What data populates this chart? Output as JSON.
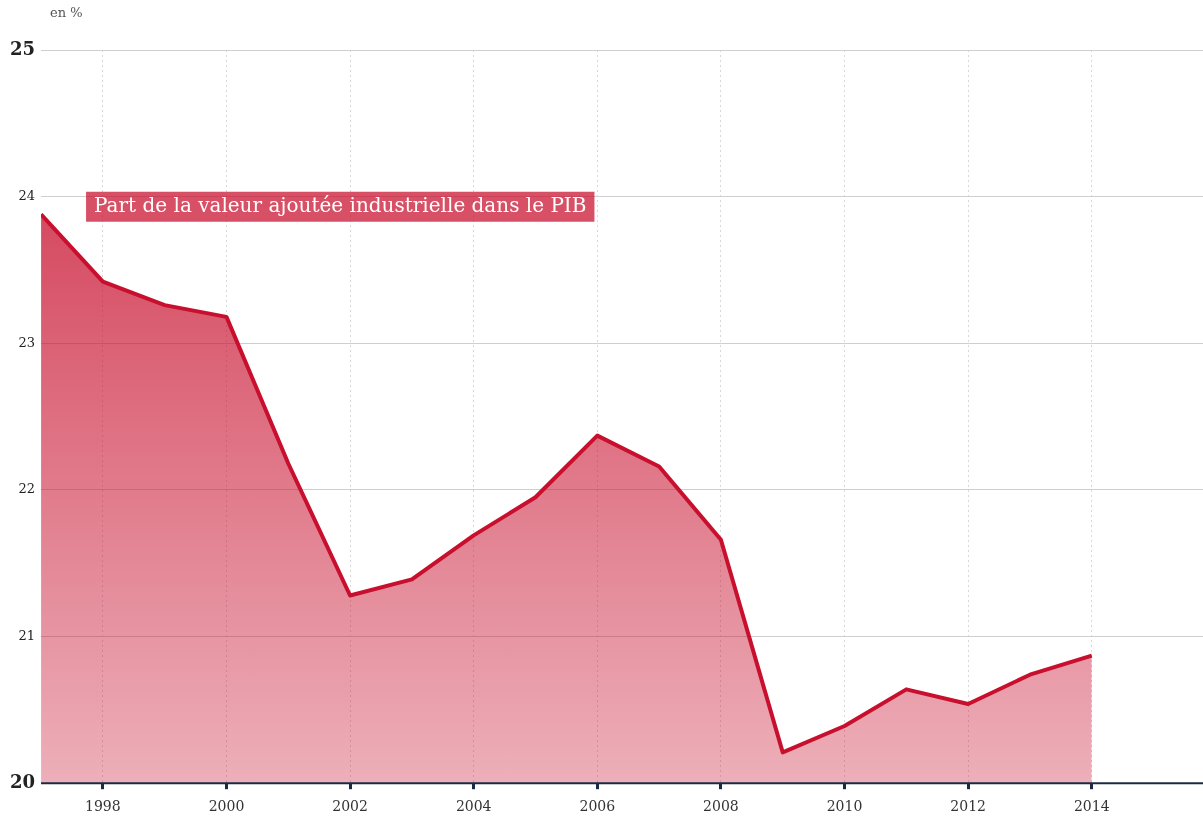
{
  "chart_data": {
    "type": "area",
    "ylabel": "en %",
    "x": [
      1997,
      1998,
      1999,
      2000,
      2001,
      2002,
      2003,
      2004,
      2005,
      2006,
      2007,
      2008,
      2009,
      2010,
      2011,
      2012,
      2013,
      2014
    ],
    "series": [
      {
        "name": "Part de la valeur ajoutée industrielle dans le PIB",
        "color": "#c8102e",
        "values": [
          23.88,
          23.42,
          23.26,
          23.18,
          22.18,
          21.28,
          21.39,
          21.69,
          21.95,
          22.37,
          22.16,
          21.66,
          20.21,
          20.39,
          20.64,
          20.54,
          20.74,
          20.87
        ]
      }
    ],
    "xlim": [
      1997,
      2015.8
    ],
    "xticks": [
      1998,
      2000,
      2002,
      2004,
      2006,
      2008,
      2010,
      2012,
      2014
    ],
    "ylim": [
      20,
      25
    ],
    "yticks": [
      20,
      21,
      22,
      23,
      24,
      25
    ],
    "grid": true,
    "legend": false
  }
}
